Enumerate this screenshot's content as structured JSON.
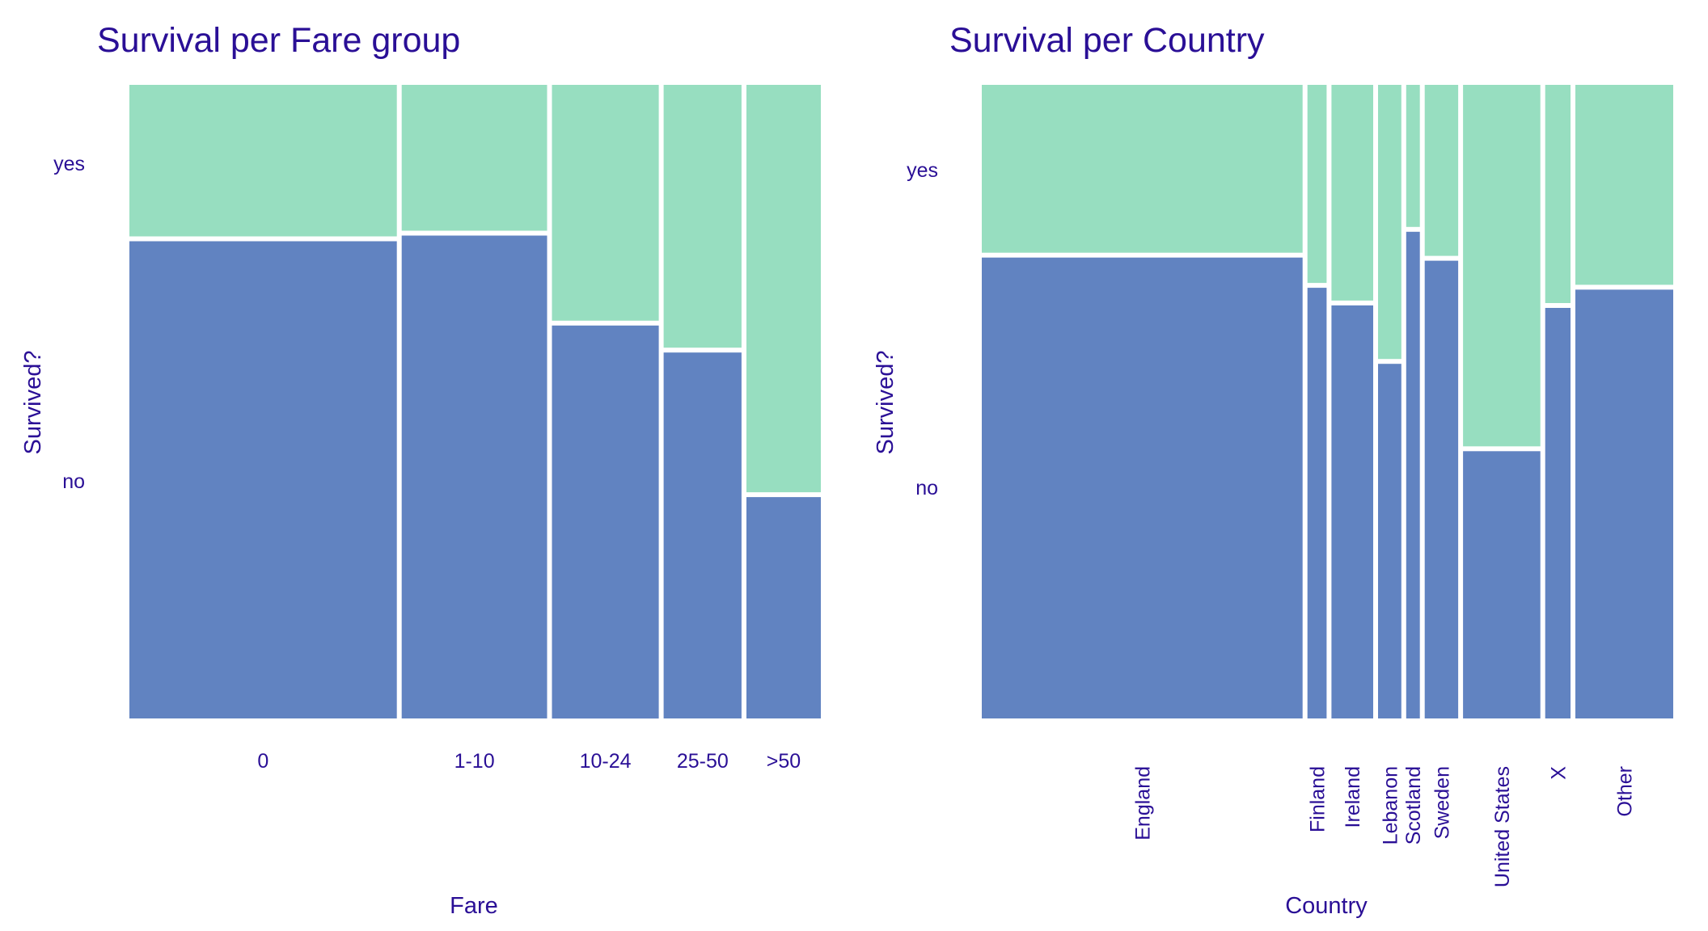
{
  "colors": {
    "no": "#6183c1",
    "yes": "#97dec0",
    "text": "#2a0f96",
    "background": "#ffffff"
  },
  "chart_data": [
    {
      "type": "mosaic",
      "title": "Survival per Fare group",
      "xlabel": "Fare",
      "ylabel": "Survived?",
      "y_levels": [
        "no",
        "yes"
      ],
      "categories": [
        "0",
        "1-10",
        "10-24",
        "25-50",
        ">50"
      ],
      "widths": [
        0.388,
        0.211,
        0.155,
        0.113,
        0.108
      ],
      "proportions": {
        "no": [
          0.759,
          0.768,
          0.625,
          0.582,
          0.352
        ],
        "yes": [
          0.241,
          0.232,
          0.375,
          0.418,
          0.648
        ]
      },
      "label_rotation": 0
    },
    {
      "type": "mosaic",
      "title": "Survival per Country",
      "xlabel": "Country",
      "ylabel": "Survived?",
      "y_levels": [
        "no",
        "yes"
      ],
      "categories": [
        "England",
        "Finland",
        "Ireland",
        "Lebanon",
        "Scotland",
        "Sweden",
        "United States",
        "X",
        "Other"
      ],
      "widths": [
        0.469,
        0.028,
        0.061,
        0.034,
        0.02,
        0.049,
        0.113,
        0.037,
        0.143
      ],
      "proportions": {
        "no": [
          0.733,
          0.685,
          0.657,
          0.564,
          0.774,
          0.728,
          0.425,
          0.653,
          0.682
        ],
        "yes": [
          0.267,
          0.315,
          0.343,
          0.436,
          0.226,
          0.272,
          0.575,
          0.347,
          0.318
        ]
      },
      "label_rotation": -90
    }
  ]
}
